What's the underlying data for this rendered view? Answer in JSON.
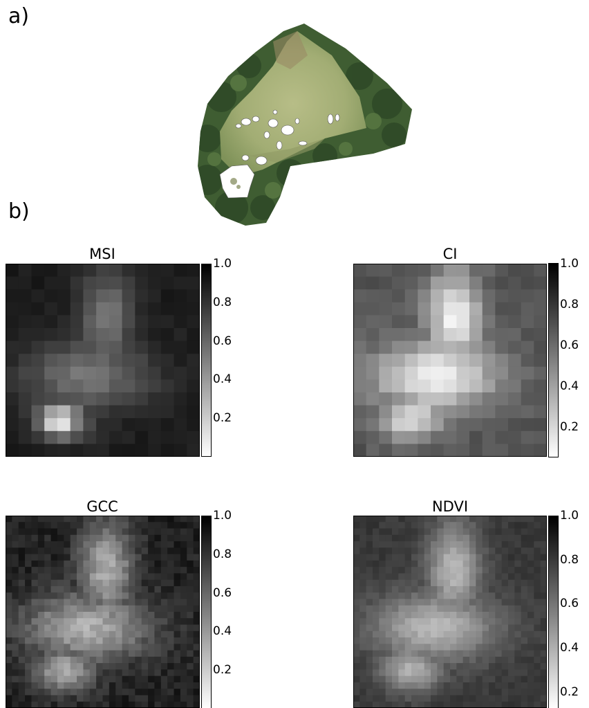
{
  "labels": {
    "a": "a)",
    "b": "b)"
  },
  "panels": [
    {
      "id": "msi",
      "title": "MSI",
      "ticks": [
        "1.0",
        "0.8",
        "0.6",
        "0.4",
        "0.2"
      ]
    },
    {
      "id": "ci",
      "title": "CI",
      "ticks": [
        "1.0",
        "0.8",
        "0.6",
        "0.4",
        "0.2"
      ]
    },
    {
      "id": "gcc",
      "title": "GCC",
      "ticks": [
        "1.0",
        "0.8",
        "0.6",
        "0.4",
        "0.2"
      ]
    },
    {
      "id": "ndvi",
      "title": "NDVI",
      "ticks": [
        "1.0",
        "0.8",
        "0.6",
        "0.4",
        "0.2"
      ]
    }
  ],
  "colors": {
    "vegetation": "#6f8a4e",
    "grass": "#a7b27a",
    "canopy": "#3d5a2f",
    "mask": "#ffffff"
  }
}
